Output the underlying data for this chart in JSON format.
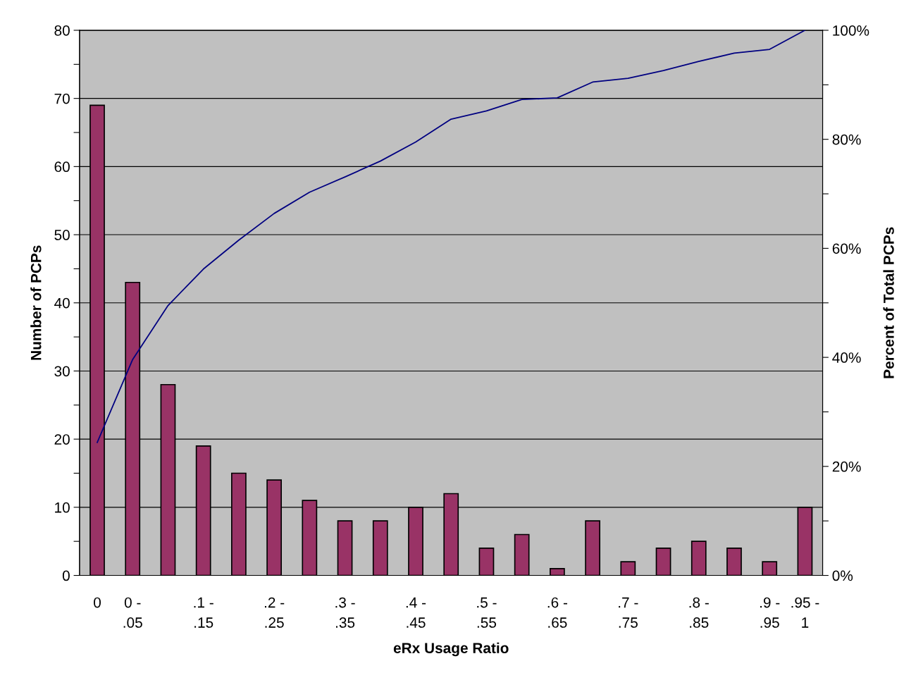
{
  "chart_data": {
    "type": "bar",
    "xlabel": "eRx Usage Ratio",
    "ylabel": "Number of PCPs",
    "y2label": "Percent of Total PCPs",
    "categories": [
      "0",
      "0 -\n.05",
      null,
      ".1 -\n.15",
      null,
      ".2 -\n.25",
      null,
      ".3 -\n.35",
      null,
      ".4 -\n.45",
      null,
      ".5 -\n.55",
      null,
      ".6 -\n.65",
      null,
      ".7 -\n.75",
      null,
      ".8 -\n.85",
      null,
      ".9 -\n.95",
      ".95 -\n1"
    ],
    "series": [
      {
        "color": "#993366",
        "values": [
          69,
          43,
          28,
          19,
          15,
          14,
          11,
          8,
          8,
          10,
          12,
          4,
          6,
          1,
          8,
          2,
          4,
          5,
          4,
          2,
          10
        ]
      },
      {
        "type": "line",
        "axis": "y2",
        "color": "#000080",
        "values": [
          24.4,
          39.6,
          49.5,
          56.2,
          61.5,
          66.4,
          70.3,
          73.1,
          76.0,
          79.5,
          83.7,
          85.2,
          87.3,
          87.6,
          90.5,
          91.2,
          92.6,
          94.3,
          95.8,
          96.5,
          100
        ]
      }
    ],
    "ylim": [
      0,
      80
    ],
    "yticks": [
      0,
      {
        "value": 5,
        "label": null
      },
      10,
      {
        "value": 15,
        "label": null
      },
      20,
      {
        "value": 25,
        "label": null
      },
      30,
      {
        "value": 35,
        "label": null
      },
      40,
      {
        "value": 45,
        "label": null
      },
      50,
      {
        "value": 55,
        "label": null
      },
      60,
      {
        "value": 65,
        "label": null
      },
      70,
      {
        "value": 75,
        "label": null
      },
      80
    ],
    "y2lim": [
      0,
      100
    ],
    "y2ticks": [
      {
        "value": 0,
        "label": "0%"
      },
      {
        "value": 10,
        "label": null
      },
      {
        "value": 20,
        "label": "20%"
      },
      {
        "value": 30,
        "label": null
      },
      {
        "value": 40,
        "label": "40%"
      },
      {
        "value": 50,
        "label": null
      },
      {
        "value": 60,
        "label": "60%"
      },
      {
        "value": 70,
        "label": null
      },
      {
        "value": 80,
        "label": "80%"
      },
      {
        "value": 90,
        "label": null
      },
      {
        "value": 100,
        "label": "100%"
      }
    ],
    "grid": "y",
    "legend": false,
    "marker": "none",
    "line_style": "solid"
  }
}
